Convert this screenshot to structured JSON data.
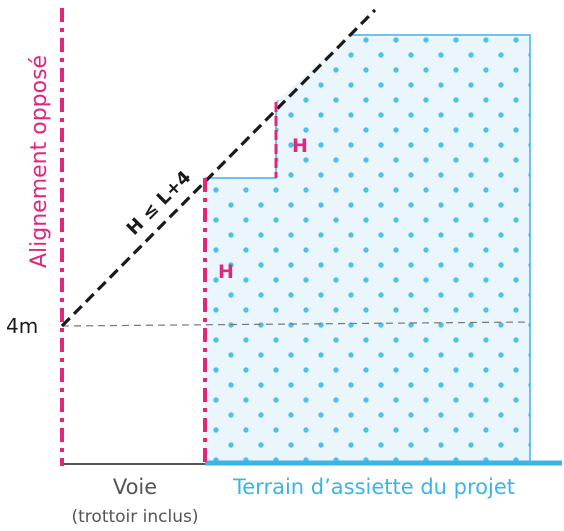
{
  "labels": {
    "alignement": "Alignement opposé",
    "four_m": "4m",
    "h_rule": "H ≤ L+4",
    "h_upper": "H",
    "h_lower": "H",
    "voie": "Voie",
    "trottoir": "(trottoir inclus)",
    "terrain": "Terrain d’assiette du projet"
  },
  "colors": {
    "magenta": "#e0267d",
    "cyan": "#3bb4e8",
    "cyan_fill": "#eaf6fc",
    "dot": "#4fc0ec",
    "black": "#1a1a1a",
    "gray_text": "#555555",
    "dash_gray": "#777777"
  }
}
